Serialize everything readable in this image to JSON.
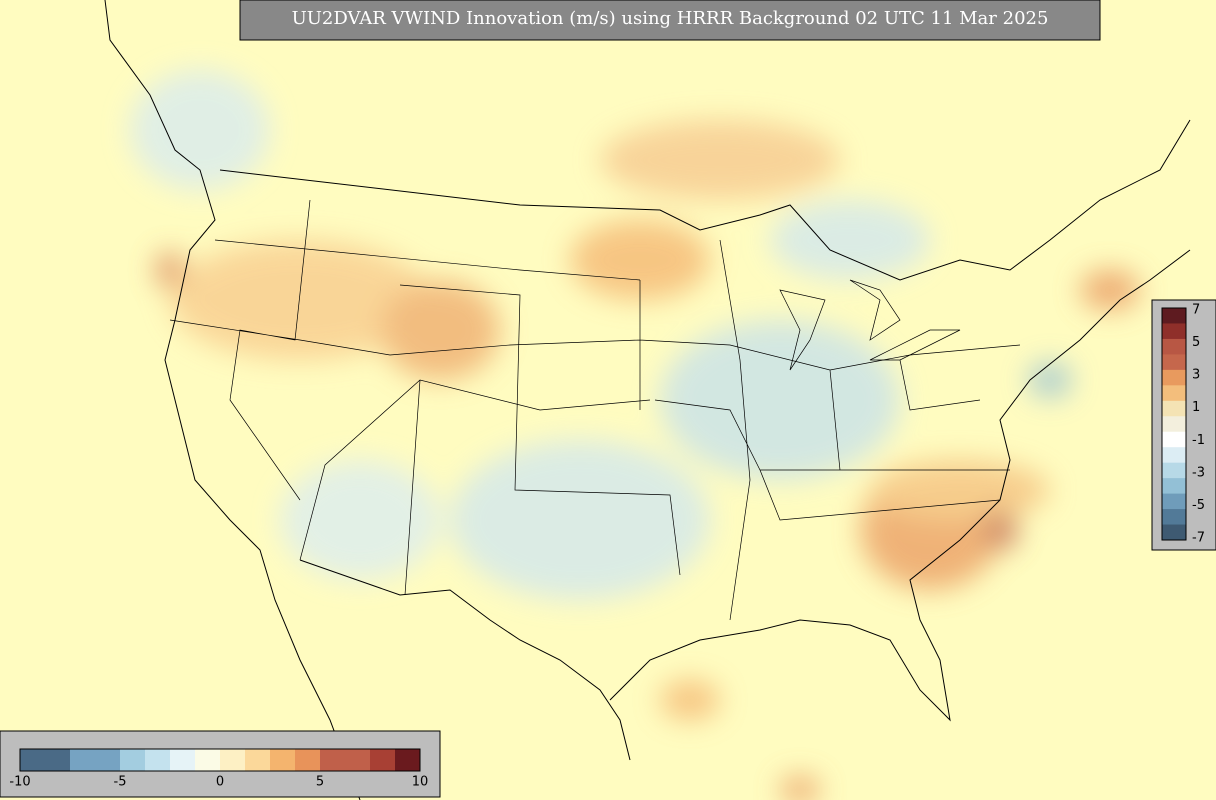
{
  "title": "UU2DVAR VWIND Innovation (m/s) using HRRR Background 02 UTC 11 Mar 2025",
  "colorbar_horizontal": {
    "ticks": [
      -10,
      -5,
      0,
      5,
      10
    ],
    "colors": [
      "#4a6a86",
      "#4a6a86",
      "#76a3c2",
      "#76a3c2",
      "#a3cde0",
      "#c4e2ee",
      "#e6f3f7",
      "#fbfbe6",
      "#fdf0c4",
      "#fbd89a",
      "#f4b46e",
      "#e8935a",
      "#c0604a",
      "#c0604a",
      "#a84034",
      "#6a1a1e"
    ]
  },
  "colorbar_vertical": {
    "ticks": [
      7,
      5,
      3,
      1,
      -1,
      -3,
      -5,
      -7
    ],
    "colors": [
      "#5e1b20",
      "#8f2f2a",
      "#b85744",
      "#c5674c",
      "#e89a5e",
      "#f3be7c",
      "#f4e3b4",
      "#f3efdd",
      "#ffffff",
      "#dcedf4",
      "#b7d9e7",
      "#93c0d6",
      "#6f9cba",
      "#527a98",
      "#3e5a72"
    ]
  }
}
